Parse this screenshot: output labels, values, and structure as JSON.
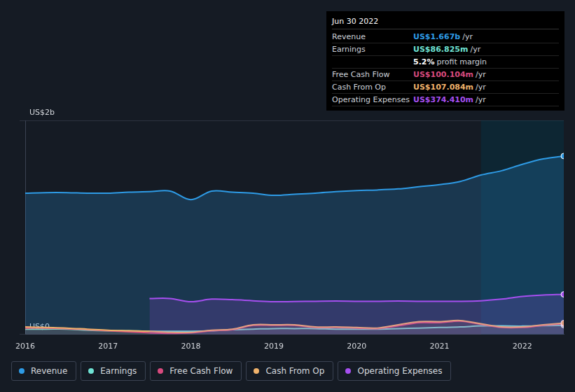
{
  "chart_data": {
    "type": "line",
    "x": [
      2016,
      2016.25,
      2016.5,
      2016.75,
      2017,
      2017.25,
      2017.5,
      2017.75,
      2018,
      2018.25,
      2018.5,
      2018.75,
      2019,
      2019.25,
      2019.5,
      2019.75,
      2020,
      2020.25,
      2020.5,
      2020.75,
      2021,
      2021.25,
      2021.5,
      2021.75,
      2022,
      2022.25,
      2022.5
    ],
    "xlim": [
      2016,
      2022.5
    ],
    "xticks": [
      2016,
      2017,
      2018,
      2019,
      2020,
      2021,
      2022
    ],
    "ylim": [
      0,
      2
    ],
    "yticks": [
      {
        "value": 0,
        "label": "US$0"
      },
      {
        "value": 2,
        "label": "US$2b"
      }
    ],
    "grid": true,
    "highlight_x": [
      2021.5,
      2022.5
    ],
    "series": [
      {
        "name": "Revenue",
        "color": "#2e9be6",
        "values": [
          1.32,
          1.325,
          1.325,
          1.32,
          1.32,
          1.33,
          1.335,
          1.34,
          1.26,
          1.34,
          1.33,
          1.32,
          1.3,
          1.31,
          1.32,
          1.335,
          1.345,
          1.35,
          1.36,
          1.38,
          1.4,
          1.43,
          1.49,
          1.53,
          1.59,
          1.64,
          1.667
        ]
      },
      {
        "name": "Earnings",
        "color": "#6fe3d4",
        "values": [
          0.05,
          0.05,
          0.05,
          0.04,
          0.035,
          0.035,
          0.03,
          0.03,
          0.03,
          0.035,
          0.045,
          0.05,
          0.055,
          0.055,
          0.055,
          0.05,
          0.05,
          0.05,
          0.055,
          0.06,
          0.065,
          0.07,
          0.08,
          0.08,
          0.078,
          0.082,
          0.086825
        ]
      },
      {
        "name": "Free Cash Flow",
        "color": "#d84a7e",
        "values": [
          0.06,
          0.06,
          0.055,
          0.045,
          0.035,
          0.025,
          0.015,
          0.01,
          0.015,
          0.035,
          0.045,
          0.085,
          0.085,
          0.085,
          0.065,
          0.065,
          0.06,
          0.055,
          0.08,
          0.11,
          0.11,
          0.125,
          0.095,
          0.065,
          0.065,
          0.085,
          0.100104
        ]
      },
      {
        "name": "Cash From Op",
        "color": "#f0b26b",
        "values": [
          0.07,
          0.065,
          0.06,
          0.05,
          0.04,
          0.035,
          0.03,
          0.02,
          0.02,
          0.04,
          0.05,
          0.09,
          0.09,
          0.09,
          0.07,
          0.07,
          0.065,
          0.06,
          0.09,
          0.12,
          0.12,
          0.13,
          0.1,
          0.07,
          0.07,
          0.09,
          0.107084
        ]
      },
      {
        "name": "Operating Expenses",
        "color": "#a64ff0",
        "values": [
          null,
          null,
          null,
          null,
          null,
          null,
          0.336,
          0.336,
          0.306,
          0.33,
          0.325,
          0.315,
          0.306,
          0.308,
          0.31,
          0.312,
          0.31,
          0.31,
          0.312,
          0.31,
          0.31,
          0.31,
          0.315,
          0.33,
          0.355,
          0.368,
          0.37441
        ]
      }
    ],
    "info_box": {
      "title": "Jun 30 2022",
      "rows": [
        {
          "label": "Revenue",
          "value": "US$1.667b",
          "unit": "/yr"
        },
        {
          "label": "Earnings",
          "value": "US$86.825m",
          "unit": "/yr"
        },
        {
          "value": "5.2%",
          "unit": "profit margin"
        },
        {
          "label": "Free Cash Flow",
          "value": "US$100.104m",
          "unit": "/yr"
        },
        {
          "label": "Cash From Op",
          "value": "US$107.084m",
          "unit": "/yr"
        },
        {
          "label": "Operating Expenses",
          "value": "US$374.410m",
          "unit": "/yr"
        }
      ]
    }
  }
}
